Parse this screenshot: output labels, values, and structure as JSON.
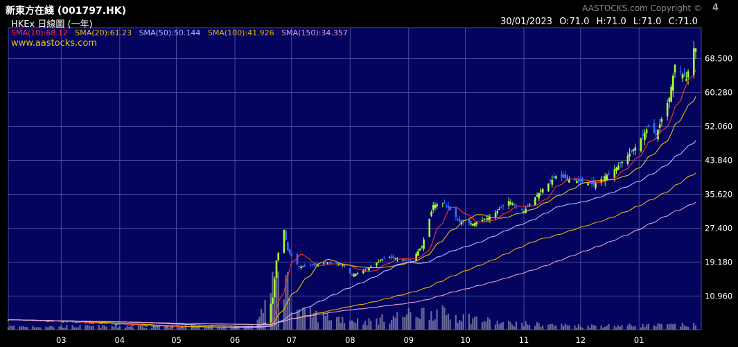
{
  "header": {
    "title": "新東方在綫 (001797.HK)",
    "subtitle": "HKEx 日線圖 (一年)",
    "copyright": "AASTOCKS.com Copyright ©",
    "logo": "4",
    "watermark": "www.aastocks.com",
    "date": "30/01/2023",
    "open": "O:71.0",
    "high": "H:71.0",
    "low": "L:71.0",
    "close": "C:71.0"
  },
  "sma_legend": [
    {
      "label": "SMA(10):68.12",
      "color": "#ff3030"
    },
    {
      "label": "SMA(20):61.23",
      "color": "#e8c400"
    },
    {
      "label": "SMA(50):50.144",
      "color": "#b8b8ff"
    },
    {
      "label": "SMA(100):41.926",
      "color": "#e8b000"
    },
    {
      "label": "SMA(150):34.357",
      "color": "#e0a0d0"
    }
  ],
  "colors": {
    "plot_background": "#04045e",
    "grid": "#4a4a9a",
    "candle_up": "#a8ff30",
    "candle_down": "#3070ff",
    "volume": "#8a8aa8"
  },
  "chart_data": {
    "type": "candlestick",
    "x_axis_type": "date",
    "x_tick_labels": [
      "03",
      "04",
      "05",
      "06",
      "07",
      "08",
      "09",
      "10",
      "11",
      "12",
      "01"
    ],
    "y_tick_labels": [
      "10.960",
      "19.180",
      "27.400",
      "35.620",
      "43.840",
      "52.060",
      "60.280",
      "68.500"
    ],
    "ylim": [
      2.8,
      76
    ],
    "y_axis_side": "right",
    "grid": true,
    "price_anchors": [
      [
        "2022-02-01",
        5.2
      ],
      [
        "2022-03-15",
        4.5
      ],
      [
        "2022-04-20",
        3.6
      ],
      [
        "2022-05-20",
        3.4
      ],
      [
        "2022-06-10",
        3.3
      ],
      [
        "2022-06-17",
        4.5
      ],
      [
        "2022-06-21",
        10.5
      ],
      [
        "2022-06-23",
        19.5
      ],
      [
        "2022-06-27",
        27.0
      ],
      [
        "2022-06-29",
        22.0
      ],
      [
        "2022-07-05",
        18.0
      ],
      [
        "2022-07-20",
        19.0
      ],
      [
        "2022-07-28",
        18.5
      ],
      [
        "2022-08-02",
        16.0
      ],
      [
        "2022-08-10",
        17.5
      ],
      [
        "2022-08-20",
        20.5
      ],
      [
        "2022-09-02",
        19.5
      ],
      [
        "2022-09-08",
        23.0
      ],
      [
        "2022-09-14",
        33.0
      ],
      [
        "2022-09-20",
        33.5
      ],
      [
        "2022-09-28",
        29.0
      ],
      [
        "2022-10-05",
        28.5
      ],
      [
        "2022-10-14",
        30.0
      ],
      [
        "2022-10-24",
        34.0
      ],
      [
        "2022-11-01",
        31.5
      ],
      [
        "2022-11-10",
        36.5
      ],
      [
        "2022-11-18",
        40.0
      ],
      [
        "2022-11-28",
        39.0
      ],
      [
        "2022-12-08",
        38.0
      ],
      [
        "2022-12-20",
        42.0
      ],
      [
        "2022-12-30",
        47.0
      ],
      [
        "2023-01-06",
        52.0
      ],
      [
        "2023-01-10",
        50.0
      ],
      [
        "2023-01-17",
        59.0
      ],
      [
        "2023-01-20",
        67.0
      ],
      [
        "2023-01-26",
        63.5
      ],
      [
        "2023-01-30",
        71.0
      ]
    ],
    "volume_anchors": [
      [
        "2022-02-01",
        0.05
      ],
      [
        "2022-06-10",
        0.05
      ],
      [
        "2022-06-21",
        0.6
      ],
      [
        "2022-06-24",
        1.0
      ],
      [
        "2022-07-05",
        0.25
      ],
      [
        "2022-08-10",
        0.12
      ],
      [
        "2022-09-12",
        0.28
      ],
      [
        "2022-10-20",
        0.1
      ],
      [
        "2022-12-01",
        0.06
      ],
      [
        "2023-01-30",
        0.07
      ]
    ]
  }
}
